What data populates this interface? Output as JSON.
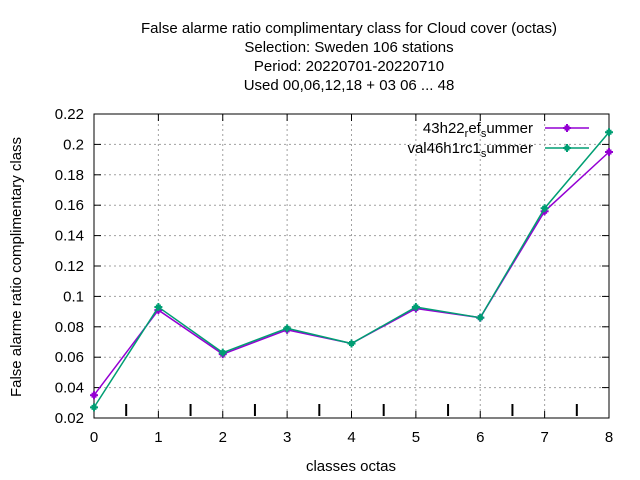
{
  "chart_data": {
    "type": "line",
    "title_lines": [
      "False alarme ratio complimentary class  for Cloud cover (octas)",
      "Selection: Sweden    106 stations",
      "Period: 20220701-20220710",
      "Used  00,06,12,18  + 03 06 ... 48"
    ],
    "xlabel": "classes octas",
    "ylabel": "False alarme ratio complimentary class",
    "xlim": [
      0,
      8
    ],
    "ylim": [
      0.02,
      0.22
    ],
    "x_ticks": [
      "0",
      "1",
      "2",
      "3",
      "4",
      "5",
      "6",
      "7",
      "8"
    ],
    "y_ticks": [
      "0.02",
      "0.04",
      "0.06",
      "0.08",
      "0.1",
      "0.12",
      "0.14",
      "0.16",
      "0.18",
      "0.2",
      "0.22"
    ],
    "grid": true,
    "legend_position": "top-right",
    "x": [
      0,
      1,
      2,
      3,
      4,
      5,
      6,
      7,
      8
    ],
    "series": [
      {
        "legend_parts": [
          "43h22",
          "r",
          "ef",
          "s",
          "ummer"
        ],
        "color": "#9400d3",
        "values": [
          0.035,
          0.091,
          0.062,
          0.078,
          0.069,
          0.092,
          0.086,
          0.156,
          0.195
        ]
      },
      {
        "legend_parts": [
          "val46h1rc1",
          "s",
          "ummer"
        ],
        "color": "#009e73",
        "values": [
          0.027,
          0.093,
          0.063,
          0.079,
          0.069,
          0.093,
          0.086,
          0.158,
          0.208
        ]
      }
    ]
  }
}
